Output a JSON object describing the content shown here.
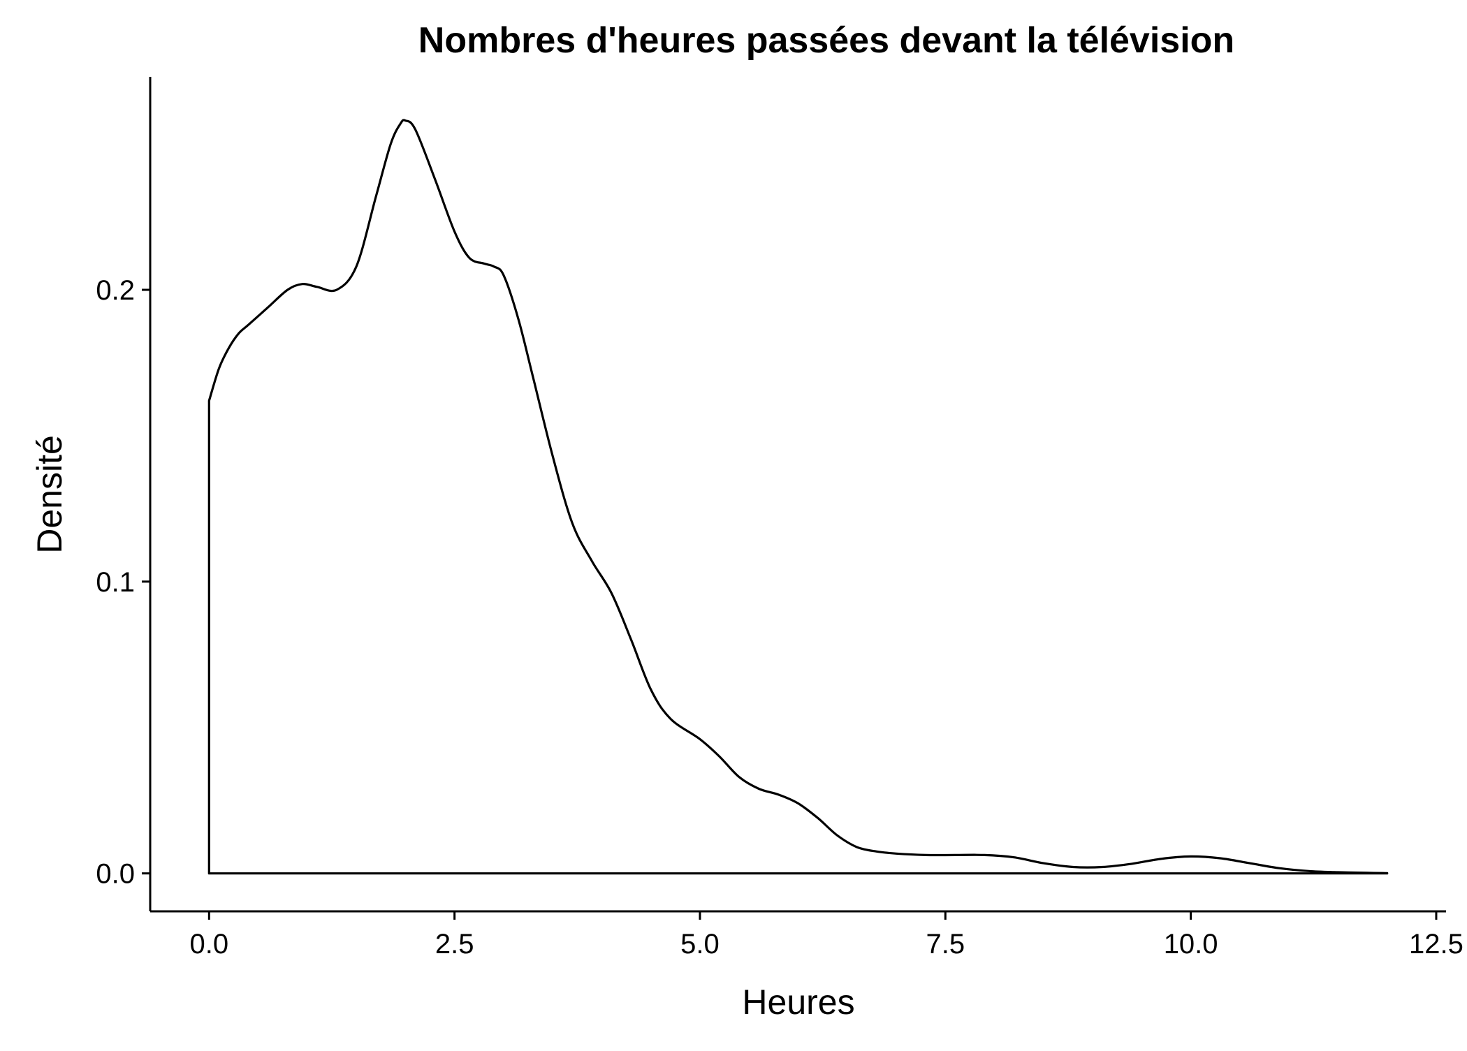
{
  "chart_data": {
    "type": "area",
    "title": "Nombres d'heures passées devant la télévision",
    "xlabel": "Heures",
    "ylabel": "Densité",
    "xlim": [
      -0.6,
      12.6
    ],
    "ylim": [
      -0.013,
      0.273
    ],
    "x_ticks": [
      {
        "value": 0.0,
        "label": "0.0"
      },
      {
        "value": 2.5,
        "label": "2.5"
      },
      {
        "value": 5.0,
        "label": "5.0"
      },
      {
        "value": 7.5,
        "label": "7.5"
      },
      {
        "value": 10.0,
        "label": "10.0"
      },
      {
        "value": 12.5,
        "label": "12.5"
      }
    ],
    "y_ticks": [
      {
        "value": 0.0,
        "label": "0.0"
      },
      {
        "value": 0.1,
        "label": "0.1"
      },
      {
        "value": 0.2,
        "label": "0.2"
      }
    ],
    "grid": false,
    "legend": "none",
    "line_color": "#000000",
    "series": [
      {
        "x": [
          0.0,
          0.1,
          0.2,
          0.3,
          0.4,
          0.6,
          0.8,
          0.95,
          1.1,
          1.3,
          1.5,
          1.7,
          1.85,
          1.95,
          2.0,
          2.1,
          2.3,
          2.5,
          2.65,
          2.8,
          2.9,
          3.0,
          3.15,
          3.3,
          3.5,
          3.7,
          3.9,
          4.1,
          4.3,
          4.5,
          4.7,
          5.0,
          5.2,
          5.4,
          5.6,
          5.8,
          6.0,
          6.2,
          6.4,
          6.6,
          6.8,
          7.0,
          7.3,
          7.6,
          7.9,
          8.2,
          8.5,
          8.8,
          9.1,
          9.4,
          9.7,
          10.0,
          10.3,
          10.6,
          10.9,
          11.2,
          11.5,
          11.8,
          12.0
        ],
        "y": [
          0.162,
          0.173,
          0.18,
          0.185,
          0.188,
          0.194,
          0.2,
          0.202,
          0.201,
          0.2,
          0.208,
          0.232,
          0.25,
          0.257,
          0.258,
          0.255,
          0.238,
          0.22,
          0.211,
          0.209,
          0.208,
          0.205,
          0.19,
          0.17,
          0.143,
          0.12,
          0.107,
          0.096,
          0.08,
          0.063,
          0.053,
          0.046,
          0.04,
          0.033,
          0.029,
          0.027,
          0.024,
          0.019,
          0.013,
          0.009,
          0.0075,
          0.0068,
          0.0063,
          0.0063,
          0.0063,
          0.0055,
          0.0035,
          0.0022,
          0.0022,
          0.0033,
          0.005,
          0.0058,
          0.0052,
          0.0035,
          0.0018,
          0.0008,
          0.0004,
          0.0002,
          0.0001
        ]
      }
    ]
  }
}
